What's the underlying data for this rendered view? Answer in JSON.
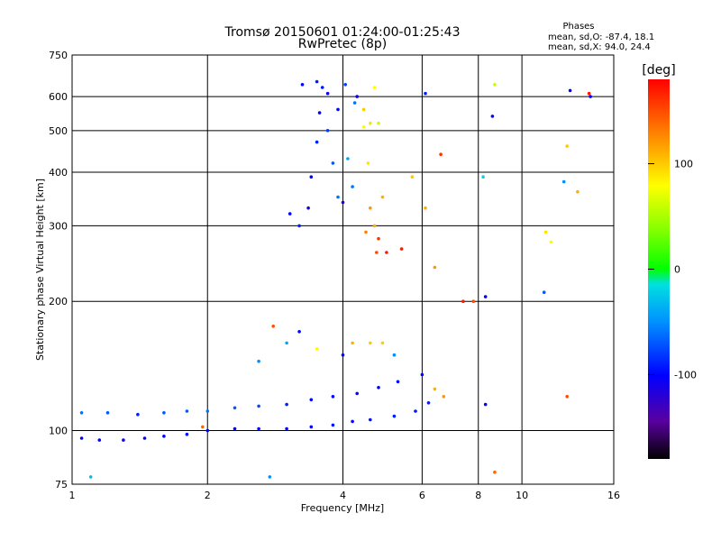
{
  "chart_data": {
    "type": "scatter",
    "title": "Tromsø 20150601 01:24:00-01:25:43",
    "subtitle": "RwPretec (8p)",
    "xlabel": "Frequency [MHz]",
    "ylabel": "Stationary phase Virtual Height [km]",
    "x_scale": "log",
    "y_scale": "log",
    "xlim": [
      1,
      16
    ],
    "ylim": [
      75,
      750
    ],
    "x_ticks": [
      "1",
      "2",
      "4",
      "6",
      "8",
      "10",
      "16"
    ],
    "y_ticks": [
      "75",
      "100",
      "200",
      "300",
      "400",
      "500",
      "600",
      "750"
    ],
    "grid": true,
    "stats": {
      "heading": "Phases",
      "line_o": "mean, sd,O: -87.4, 18.1",
      "line_x": "mean, sd,X:  94.0, 24.4"
    },
    "colorbar": {
      "unit": "[deg]",
      "range": [
        -180,
        180
      ],
      "ticks": [
        "100",
        "0",
        "-100"
      ]
    },
    "series": [
      {
        "points": [
          [
            1.05,
            96,
            -100
          ],
          [
            1.15,
            95,
            -100
          ],
          [
            1.3,
            95,
            -110
          ],
          [
            1.45,
            96,
            -100
          ],
          [
            1.6,
            97,
            -100
          ],
          [
            1.8,
            98,
            -95
          ],
          [
            2.0,
            100,
            -100
          ],
          [
            2.3,
            101,
            -100
          ],
          [
            2.6,
            101,
            -105
          ],
          [
            3.0,
            101,
            -100
          ],
          [
            3.4,
            102,
            -100
          ],
          [
            3.8,
            103,
            -95
          ],
          [
            4.2,
            105,
            -100
          ],
          [
            4.6,
            106,
            -95
          ],
          [
            5.2,
            108,
            -90
          ],
          [
            5.8,
            111,
            -95
          ],
          [
            6.2,
            116,
            -90
          ]
        ]
      },
      {
        "points": [
          [
            1.05,
            110,
            -60
          ],
          [
            1.2,
            110,
            -70
          ],
          [
            1.4,
            109,
            -90
          ],
          [
            1.6,
            110,
            -70
          ],
          [
            1.8,
            111,
            -70
          ],
          [
            2.0,
            111,
            -60
          ],
          [
            2.3,
            113,
            -70
          ],
          [
            2.6,
            114,
            -75
          ],
          [
            3.0,
            115,
            -90
          ],
          [
            3.4,
            118,
            -100
          ],
          [
            3.8,
            120,
            -100
          ],
          [
            4.3,
            122,
            -100
          ],
          [
            4.8,
            126,
            -100
          ],
          [
            5.3,
            130,
            -100
          ],
          [
            6.0,
            135,
            -100
          ],
          [
            6.4,
            125,
            110
          ],
          [
            6.7,
            120,
            120
          ]
        ]
      },
      {
        "points": [
          [
            2.6,
            145,
            -50
          ],
          [
            3.0,
            160,
            -40
          ],
          [
            3.2,
            170,
            -100
          ],
          [
            3.5,
            155,
            80
          ],
          [
            4.0,
            150,
            -100
          ],
          [
            4.2,
            160,
            110
          ],
          [
            4.6,
            160,
            100
          ],
          [
            4.9,
            160,
            100
          ],
          [
            5.2,
            150,
            -50
          ]
        ]
      },
      {
        "points": [
          [
            3.05,
            320,
            -100
          ],
          [
            3.2,
            300,
            -90
          ],
          [
            3.35,
            330,
            -110
          ],
          [
            3.4,
            390,
            -100
          ],
          [
            3.5,
            470,
            -90
          ],
          [
            3.55,
            550,
            -100
          ],
          [
            3.6,
            630,
            -95
          ],
          [
            3.7,
            500,
            -80
          ],
          [
            3.8,
            420,
            -70
          ],
          [
            3.9,
            350,
            -60
          ],
          [
            4.0,
            340,
            -110
          ],
          [
            4.1,
            430,
            -40
          ],
          [
            4.2,
            370,
            -60
          ],
          [
            4.3,
            600,
            -100
          ],
          [
            4.45,
            560,
            100
          ],
          [
            4.6,
            520,
            90
          ],
          [
            4.7,
            630,
            80
          ],
          [
            4.8,
            520,
            60
          ]
        ]
      },
      {
        "points": [
          [
            3.25,
            640,
            -100
          ],
          [
            3.5,
            650,
            -90
          ],
          [
            3.7,
            610,
            -110
          ],
          [
            3.9,
            560,
            -100
          ],
          [
            4.05,
            640,
            -80
          ],
          [
            4.25,
            580,
            -60
          ],
          [
            4.45,
            510,
            80
          ],
          [
            4.55,
            420,
            90
          ],
          [
            4.6,
            330,
            120
          ],
          [
            4.7,
            300,
            110
          ],
          [
            4.8,
            280,
            160
          ],
          [
            4.5,
            290,
            130
          ],
          [
            4.75,
            260,
            150
          ],
          [
            4.9,
            350,
            110
          ]
        ]
      },
      {
        "points": [
          [
            8.3,
            205,
            -100
          ],
          [
            8.7,
            640,
            60
          ],
          [
            8.6,
            540,
            -100
          ],
          [
            8.2,
            390,
            -20
          ],
          [
            11.2,
            210,
            -70
          ],
          [
            11.6,
            275,
            80
          ],
          [
            11.3,
            290,
            90
          ],
          [
            12.6,
            460,
            100
          ],
          [
            12.8,
            620,
            -100
          ],
          [
            14.2,
            600,
            -100
          ],
          [
            14.1,
            610,
            170
          ],
          [
            12.4,
            380,
            -50
          ],
          [
            12.6,
            120,
            150
          ],
          [
            13.3,
            360,
            110
          ],
          [
            7.8,
            200,
            150
          ],
          [
            6.6,
            440,
            160
          ],
          [
            6.1,
            610,
            -90
          ],
          [
            5.7,
            390,
            100
          ],
          [
            6.1,
            330,
            110
          ],
          [
            6.4,
            240,
            120
          ],
          [
            7.4,
            200,
            170
          ],
          [
            8.7,
            80,
            140
          ],
          [
            1.1,
            78,
            -30
          ],
          [
            1.95,
            102,
            140
          ],
          [
            2.8,
            175,
            150
          ],
          [
            2.75,
            78,
            -50
          ],
          [
            8.3,
            115,
            -100
          ],
          [
            5.4,
            265,
            170
          ],
          [
            5.0,
            260,
            170
          ]
        ]
      }
    ]
  }
}
